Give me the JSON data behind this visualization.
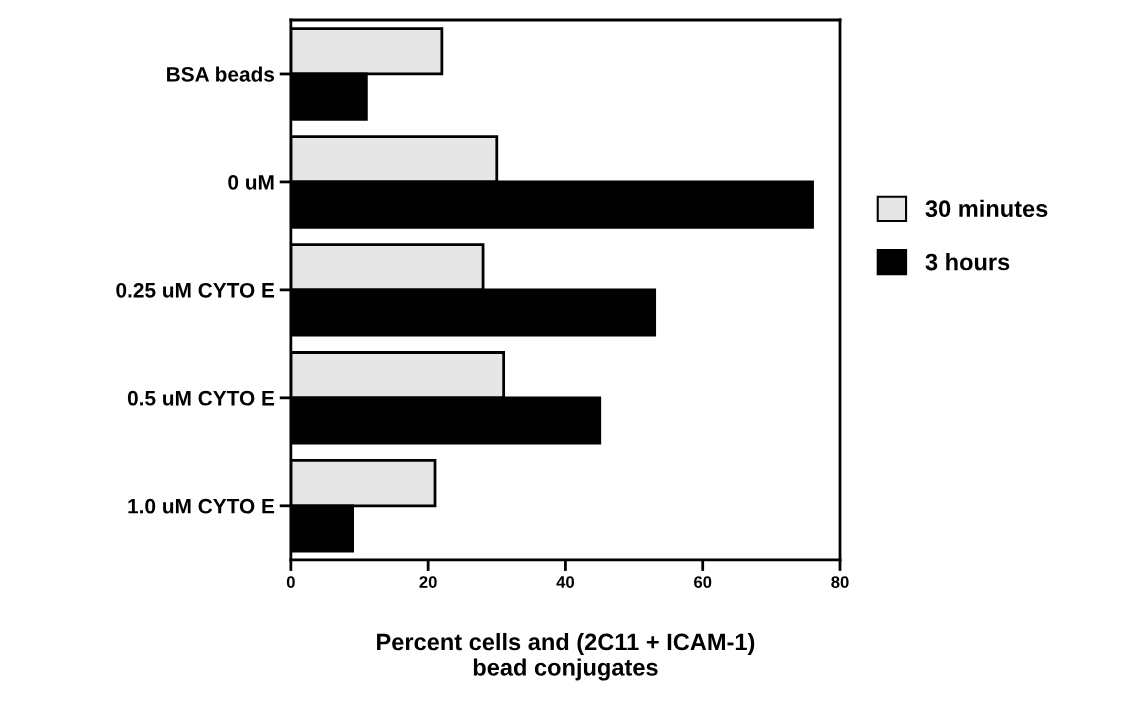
{
  "chart_data": {
    "type": "bar",
    "orientation": "horizontal",
    "xlabel": "Percent cells and (2C11 + ICAM-1)\nbead conjugates",
    "categories": [
      "BSA beads",
      "0 uM",
      "0.25 uM CYTO E",
      "0.5 uM CYTO E",
      "1.0 uM CYTO E"
    ],
    "series": [
      {
        "name": "30 minutes",
        "color": "#e6e6e6",
        "values": [
          22,
          30,
          28,
          31,
          21
        ]
      },
      {
        "name": "3 hours",
        "color": "#000000",
        "values": [
          11,
          76,
          53,
          45,
          9
        ]
      }
    ],
    "xlim": [
      0,
      80
    ],
    "xticks": [
      0,
      20,
      40,
      60,
      80
    ],
    "legend": "right",
    "grid": false
  }
}
